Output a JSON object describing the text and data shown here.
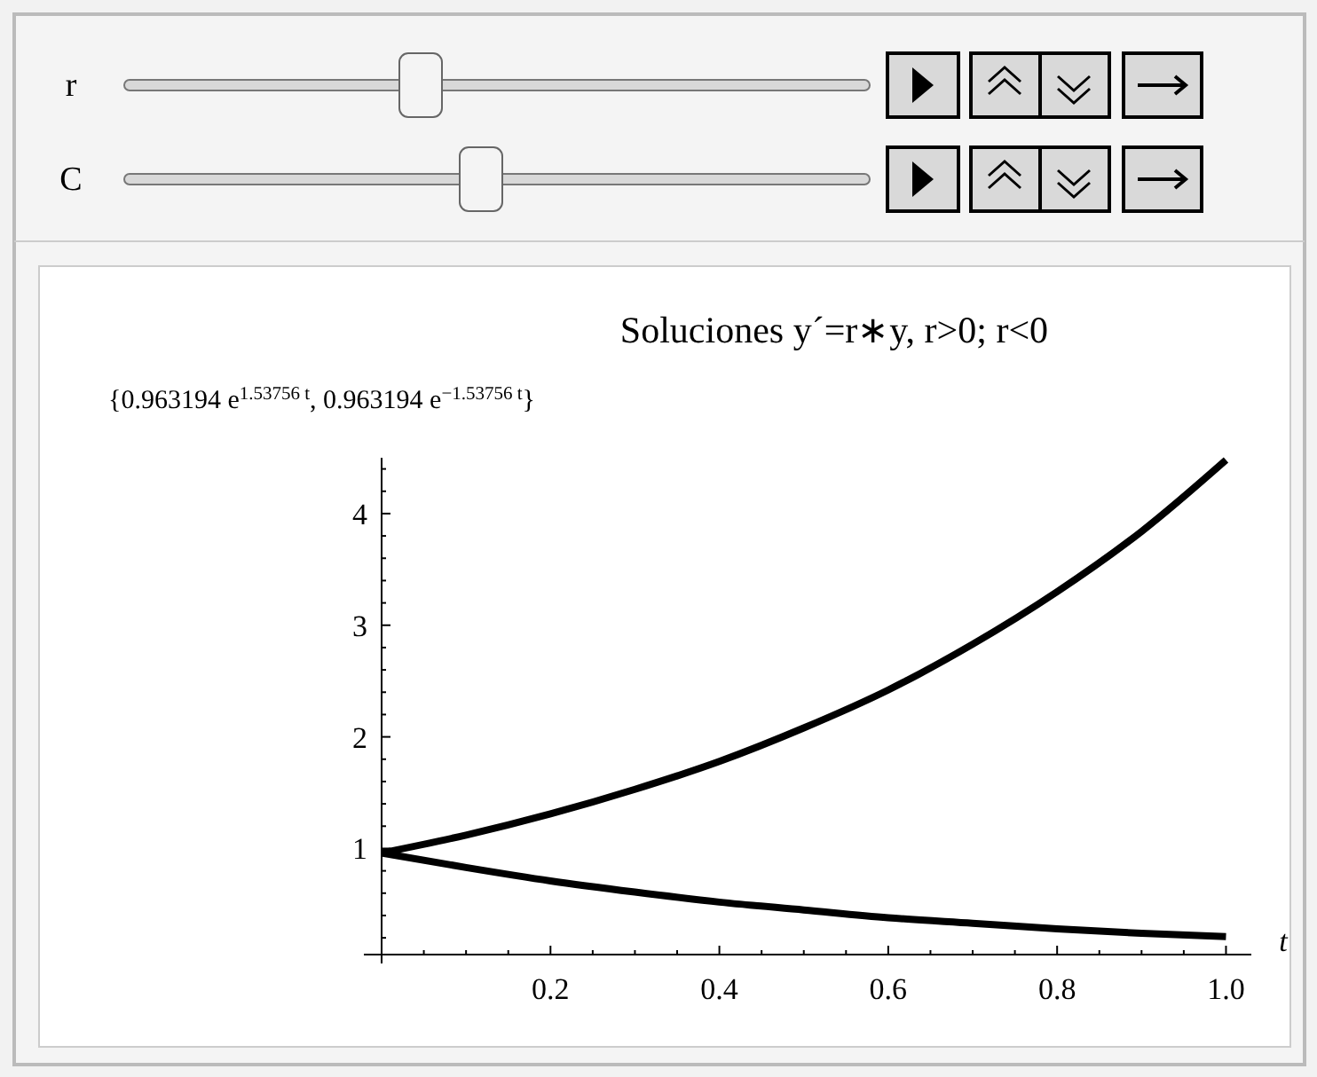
{
  "chart_data": {
    "type": "line",
    "title": "Soluciones y´=r∗y, r>0; r<0",
    "subtitle": "{0.963194 e$^{1.53756 t}$, 0.963194 e$^{−1.53756 t}$}",
    "xlabel": "t",
    "annotations": [
      "r",
      "C"
    ],
    "x": [
      0,
      0.1,
      0.2,
      0.3,
      0.4,
      0.5,
      0.6,
      0.7,
      0.8,
      0.9,
      1.0
    ],
    "series": [
      {
        "color": "#000000",
        "values": [
          0.96,
          1.12,
          1.31,
          1.53,
          1.78,
          2.08,
          2.42,
          2.83,
          3.3,
          3.84,
          4.48
        ]
      },
      {
        "color": "#000000",
        "values": [
          0.96,
          0.83,
          0.71,
          0.61,
          0.52,
          0.45,
          0.38,
          0.33,
          0.28,
          0.24,
          0.21
        ]
      }
    ],
    "xlim": [
      0,
      1.03
    ],
    "ylim": [
      0.05,
      4.5
    ],
    "xticks": [
      {
        "value": 0.05,
        "label": null
      },
      {
        "value": 0.1,
        "label": null
      },
      {
        "value": 0.15,
        "label": null
      },
      0.2,
      {
        "value": 0.25,
        "label": null
      },
      {
        "value": 0.3,
        "label": null
      },
      {
        "value": 0.35,
        "label": null
      },
      0.4,
      {
        "value": 0.45,
        "label": null
      },
      {
        "value": 0.5,
        "label": null
      },
      {
        "value": 0.55,
        "label": null
      },
      0.6,
      {
        "value": 0.65,
        "label": null
      },
      {
        "value": 0.7,
        "label": null
      },
      {
        "value": 0.75,
        "label": null
      },
      0.8,
      {
        "value": 0.85,
        "label": null
      },
      {
        "value": 0.9,
        "label": null
      },
      {
        "value": 0.95,
        "label": null
      },
      {
        "value": 1.0,
        "label": "1.0"
      }
    ],
    "yticks": [
      {
        "value": 0.2,
        "label": null
      },
      {
        "value": 0.4,
        "label": null
      },
      {
        "value": 0.6,
        "label": null
      },
      {
        "value": 0.8,
        "label": null
      },
      1,
      {
        "value": 1.2,
        "label": null
      },
      {
        "value": 1.4,
        "label": null
      },
      {
        "value": 1.6,
        "label": null
      },
      {
        "value": 1.8,
        "label": null
      },
      2,
      {
        "value": 2.2,
        "label": null
      },
      {
        "value": 2.4,
        "label": null
      },
      {
        "value": 2.6,
        "label": null
      },
      {
        "value": 2.8,
        "label": null
      },
      3,
      {
        "value": 3.2,
        "label": null
      },
      {
        "value": 3.4,
        "label": null
      },
      {
        "value": 3.6,
        "label": null
      },
      {
        "value": 3.8,
        "label": null
      },
      4,
      {
        "value": 4.2,
        "label": null
      },
      {
        "value": 4.4,
        "label": null
      }
    ],
    "grid": false,
    "marker": "none",
    "line_style": "solid"
  }
}
